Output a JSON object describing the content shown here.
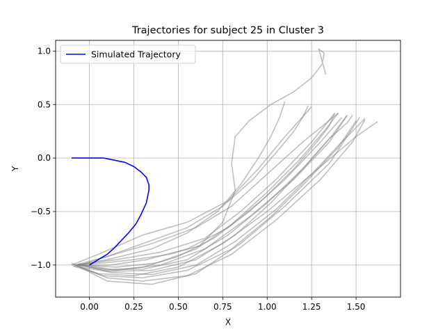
{
  "chart_data": {
    "type": "line",
    "title": "Trajectories for subject 25 in Cluster 3",
    "xlabel": "X",
    "ylabel": "Y",
    "xlim": [
      -0.19,
      1.75
    ],
    "ylim": [
      -1.3,
      1.1
    ],
    "xticks": [
      {
        "value": 0.0,
        "label": "0.00"
      },
      {
        "value": 0.25,
        "label": "0.25"
      },
      {
        "value": 0.5,
        "label": "0.50"
      },
      {
        "value": 0.75,
        "label": "0.75"
      },
      {
        "value": 1.0,
        "label": "1.00"
      },
      {
        "value": 1.25,
        "label": "1.25"
      },
      {
        "value": 1.5,
        "label": "1.50"
      }
    ],
    "yticks": [
      {
        "value": -1.0,
        "label": "−1.0"
      },
      {
        "value": -0.5,
        "label": "−0.5"
      },
      {
        "value": 0.0,
        "label": "0.0"
      },
      {
        "value": 0.5,
        "label": "0.5"
      },
      {
        "value": 1.0,
        "label": "1.0"
      }
    ],
    "grid": true,
    "legend": {
      "placement": "upper-left",
      "entries": [
        "Simulated Trajectory"
      ]
    },
    "colors": {
      "simulated": "#0000ff",
      "observed": "#808080"
    },
    "simulated": {
      "name": "Simulated Trajectory",
      "x": [
        0.0,
        0.03,
        0.06,
        0.1,
        0.14,
        0.18,
        0.22,
        0.26,
        0.29,
        0.32,
        0.335,
        0.335,
        0.32,
        0.29,
        0.25,
        0.2,
        0.14,
        0.08,
        0.02,
        -0.04,
        -0.1
      ],
      "y": [
        -1.0,
        -0.97,
        -0.94,
        -0.9,
        -0.84,
        -0.77,
        -0.7,
        -0.62,
        -0.53,
        -0.42,
        -0.3,
        -0.25,
        -0.18,
        -0.13,
        -0.08,
        -0.04,
        -0.02,
        0.0,
        0.0,
        0.0,
        0.0
      ]
    },
    "series": [
      {
        "x": [
          -0.08,
          0.05,
          0.25,
          0.5,
          0.75,
          1.0,
          1.25,
          1.5,
          1.62
        ],
        "y": [
          -1.0,
          -1.08,
          -1.1,
          -1.02,
          -0.8,
          -0.5,
          -0.15,
          0.2,
          0.34
        ]
      },
      {
        "x": [
          -0.05,
          0.1,
          0.3,
          0.55,
          0.8,
          1.05,
          1.3,
          1.48,
          1.55
        ],
        "y": [
          -1.02,
          -1.12,
          -1.15,
          -1.1,
          -0.9,
          -0.58,
          -0.2,
          0.15,
          0.36
        ]
      },
      {
        "x": [
          -0.1,
          0.1,
          0.35,
          0.6,
          0.85,
          1.1,
          1.35,
          1.52
        ],
        "y": [
          -0.98,
          -1.15,
          -1.18,
          -1.08,
          -0.8,
          -0.45,
          -0.05,
          0.38
        ]
      },
      {
        "x": [
          -0.06,
          0.15,
          0.4,
          0.65,
          0.9,
          1.15,
          1.35,
          1.45
        ],
        "y": [
          -0.99,
          -1.05,
          -1.0,
          -0.85,
          -0.55,
          -0.2,
          0.15,
          0.4
        ]
      },
      {
        "x": [
          -0.08,
          0.15,
          0.4,
          0.65,
          0.85,
          1.05,
          1.25,
          1.38
        ],
        "y": [
          -1.0,
          -0.95,
          -0.88,
          -0.75,
          -0.5,
          -0.2,
          0.15,
          0.42
        ]
      },
      {
        "x": [
          -0.05,
          0.1,
          0.35,
          0.6,
          0.8,
          1.0,
          1.2,
          1.4
        ],
        "y": [
          -1.0,
          -0.92,
          -0.8,
          -0.65,
          -0.45,
          -0.15,
          0.15,
          0.42
        ]
      },
      {
        "x": [
          -0.1,
          0.05,
          0.3,
          0.55,
          0.78,
          0.95,
          1.1,
          1.25
        ],
        "y": [
          -1.0,
          -0.9,
          -0.72,
          -0.6,
          -0.4,
          -0.1,
          0.2,
          0.48
        ]
      },
      {
        "x": [
          -0.07,
          0.1,
          0.3,
          0.5,
          0.7,
          0.9,
          1.1,
          1.3,
          1.42
        ],
        "y": [
          -1.0,
          -1.05,
          -1.02,
          -0.92,
          -0.75,
          -0.5,
          -0.2,
          0.15,
          0.38
        ]
      },
      {
        "x": [
          -0.09,
          0.08,
          0.3,
          0.55,
          0.8,
          1.02,
          1.22,
          1.4,
          1.5
        ],
        "y": [
          -1.01,
          -1.1,
          -1.12,
          -1.05,
          -0.85,
          -0.55,
          -0.22,
          0.1,
          0.35
        ]
      },
      {
        "x": [
          -0.06,
          0.12,
          0.35,
          0.6,
          0.82,
          1.05,
          1.25,
          1.42,
          1.55
        ],
        "y": [
          -0.99,
          -1.07,
          -1.09,
          -1.0,
          -0.78,
          -0.48,
          -0.15,
          0.15,
          0.37
        ]
      },
      {
        "x": [
          -0.08,
          0.1,
          0.3,
          0.55,
          0.78,
          1.0,
          1.2,
          1.36,
          1.45
        ],
        "y": [
          -1.0,
          -1.04,
          -1.04,
          -0.95,
          -0.72,
          -0.42,
          -0.1,
          0.2,
          0.4
        ]
      },
      {
        "x": [
          -0.05,
          0.15,
          0.38,
          0.6,
          0.8,
          1.0,
          1.18,
          1.32,
          1.4
        ],
        "y": [
          -1.0,
          -1.02,
          -0.98,
          -0.85,
          -0.62,
          -0.32,
          -0.02,
          0.25,
          0.42
        ]
      },
      {
        "x": [
          -0.1,
          0.08,
          0.25,
          0.45,
          0.62,
          0.75,
          0.82,
          0.8,
          0.82,
          0.9,
          1.02,
          1.15,
          1.25,
          1.31,
          1.32,
          1.29,
          1.31,
          1.33
        ],
        "y": [
          -1.0,
          -0.98,
          -0.95,
          -0.9,
          -0.82,
          -0.6,
          -0.3,
          -0.05,
          0.2,
          0.35,
          0.5,
          0.62,
          0.75,
          0.88,
          0.98,
          1.02,
          0.9,
          0.78
        ]
      },
      {
        "x": [
          -0.07,
          0.1,
          0.35,
          0.55,
          0.72,
          0.85,
          0.95,
          1.02,
          1.07,
          1.1
        ],
        "y": [
          -1.0,
          -0.95,
          -0.85,
          -0.7,
          -0.5,
          -0.25,
          0.0,
          0.2,
          0.38,
          0.53
        ]
      },
      {
        "x": [
          -0.08,
          0.1,
          0.3,
          0.55,
          0.75,
          0.92,
          1.05,
          1.15,
          1.2,
          1.23
        ],
        "y": [
          -1.0,
          -0.92,
          -0.8,
          -0.65,
          -0.45,
          -0.2,
          0.05,
          0.25,
          0.38,
          0.49
        ]
      },
      {
        "x": [
          -0.06,
          0.12,
          0.32,
          0.55,
          0.78,
          0.98,
          1.15,
          1.28,
          1.35,
          1.38
        ],
        "y": [
          -1.0,
          -1.0,
          -0.95,
          -0.85,
          -0.65,
          -0.38,
          -0.1,
          0.15,
          0.3,
          0.42
        ]
      },
      {
        "x": [
          -0.09,
          0.1,
          0.35,
          0.6,
          0.82,
          1.02,
          1.2,
          1.35,
          1.45,
          1.48
        ],
        "y": [
          -1.01,
          -1.06,
          -1.05,
          -0.95,
          -0.72,
          -0.42,
          -0.1,
          0.18,
          0.33,
          0.4
        ]
      }
    ]
  }
}
